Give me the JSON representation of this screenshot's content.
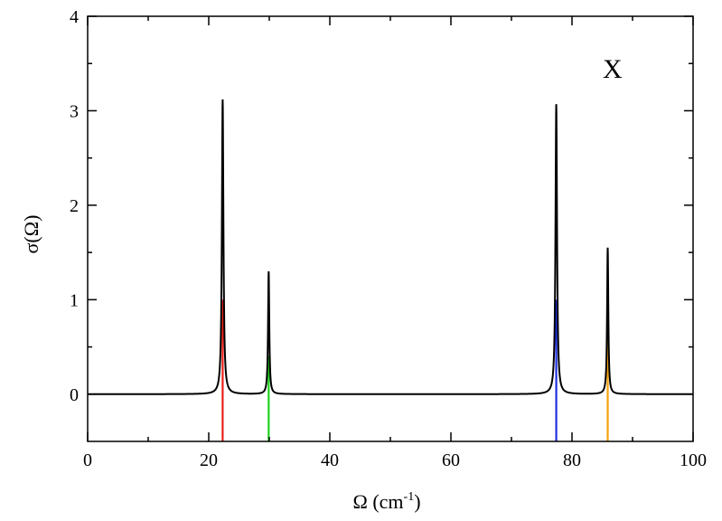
{
  "chart_data": {
    "type": "line",
    "title": "",
    "annotation": "X",
    "xlabel": "Ω  (cm",
    "xlabel_sup": "-1",
    "xlabel_close": ")",
    "ylabel": "σ(Ω)",
    "xlim": [
      0,
      100
    ],
    "ylim": [
      -0.5,
      4
    ],
    "xticks": [
      0,
      20,
      40,
      60,
      80,
      100
    ],
    "yticks": [
      0,
      1,
      2,
      3,
      4
    ],
    "x_minor_step": 10,
    "y_minor_step": 0.5,
    "grid": false,
    "line_color": "#000000",
    "peaks": [
      {
        "x": 22.3,
        "height": 3.12,
        "width": 0.15
      },
      {
        "x": 29.9,
        "height": 1.3,
        "width": 0.12
      },
      {
        "x": 77.4,
        "height": 3.07,
        "width": 0.15
      },
      {
        "x": 85.9,
        "height": 1.55,
        "width": 0.12
      }
    ],
    "sticks": [
      {
        "x": 22.3,
        "top": 1.0,
        "color": "#e8211c"
      },
      {
        "x": 29.9,
        "top": 0.4,
        "color": "#1ed31e"
      },
      {
        "x": 77.4,
        "top": 1.0,
        "color": "#1f2fe0"
      },
      {
        "x": 85.9,
        "top": 1.0,
        "color": "#f2a10b"
      }
    ]
  }
}
